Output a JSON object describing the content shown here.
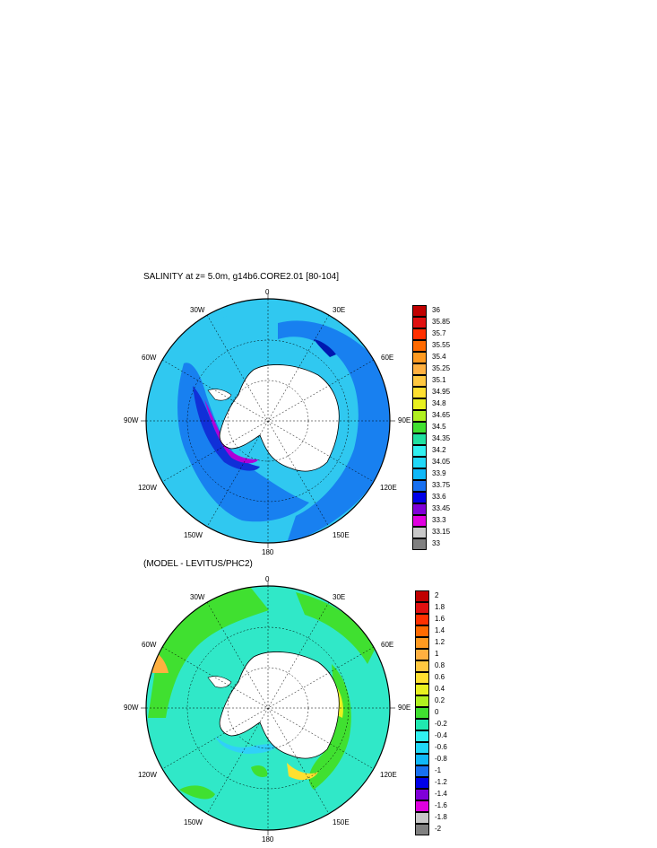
{
  "panel_top": {
    "title": "SALINITY at z=   5.0m, g14b6.CORE2.01 [80-104]",
    "lon_labels": {
      "top": "0",
      "bottom": "180",
      "left": "90W",
      "right": "90E",
      "tl_in": "30W",
      "tr_in": "30E",
      "tl_out": "60W",
      "tr_out": "60E",
      "bl_in": "150W",
      "br_in": "150E",
      "bl_out": "120W",
      "br_out": "120E"
    },
    "colorbar": {
      "labels": [
        "36",
        "35.85",
        "35.7",
        "35.55",
        "35.4",
        "35.25",
        "35.1",
        "34.95",
        "34.8",
        "34.65",
        "34.5",
        "34.35",
        "34.2",
        "34.05",
        "33.9",
        "33.75",
        "33.6",
        "33.45",
        "33.3",
        "33.15",
        "33"
      ],
      "colors": [
        "#c00000",
        "#e01010",
        "#ff3000",
        "#ff6a00",
        "#ff9a20",
        "#ffb040",
        "#ffc840",
        "#ffe030",
        "#e8f020",
        "#b0f020",
        "#40e030",
        "#20e0a0",
        "#30f0f0",
        "#20d8f8",
        "#10b8f8",
        "#1870f0",
        "#0000e8",
        "#8000d8",
        "#e000e0",
        "#c8c8c8",
        "#808080"
      ]
    }
  },
  "panel_bottom": {
    "title": "(MODEL - LEVITUS/PHC2)",
    "lon_labels": {
      "top": "0",
      "bottom": "180",
      "left": "90W",
      "right": "90E",
      "tl_in": "30W",
      "tr_in": "30E",
      "tl_out": "60W",
      "tr_out": "60E",
      "bl_in": "150W",
      "br_in": "150E",
      "bl_out": "120W",
      "br_out": "120E"
    },
    "colorbar": {
      "labels": [
        "2",
        "1.8",
        "1.6",
        "1.4",
        "1.2",
        "1",
        "0.8",
        "0.6",
        "0.4",
        "0.2",
        "0",
        "-0.2",
        "-0.4",
        "-0.6",
        "-0.8",
        "-1",
        "-1.2",
        "-1.4",
        "-1.6",
        "-1.8",
        "-2"
      ],
      "colors": [
        "#c00000",
        "#e01010",
        "#ff3000",
        "#ff6a00",
        "#ff9a20",
        "#ffb040",
        "#ffc840",
        "#ffe030",
        "#e8f020",
        "#b0f020",
        "#40e030",
        "#20e8b0",
        "#30f0f0",
        "#20d8f8",
        "#10b8f8",
        "#1870f0",
        "#0000e8",
        "#8000d8",
        "#e000e0",
        "#c8c8c8",
        "#808080"
      ]
    }
  }
}
